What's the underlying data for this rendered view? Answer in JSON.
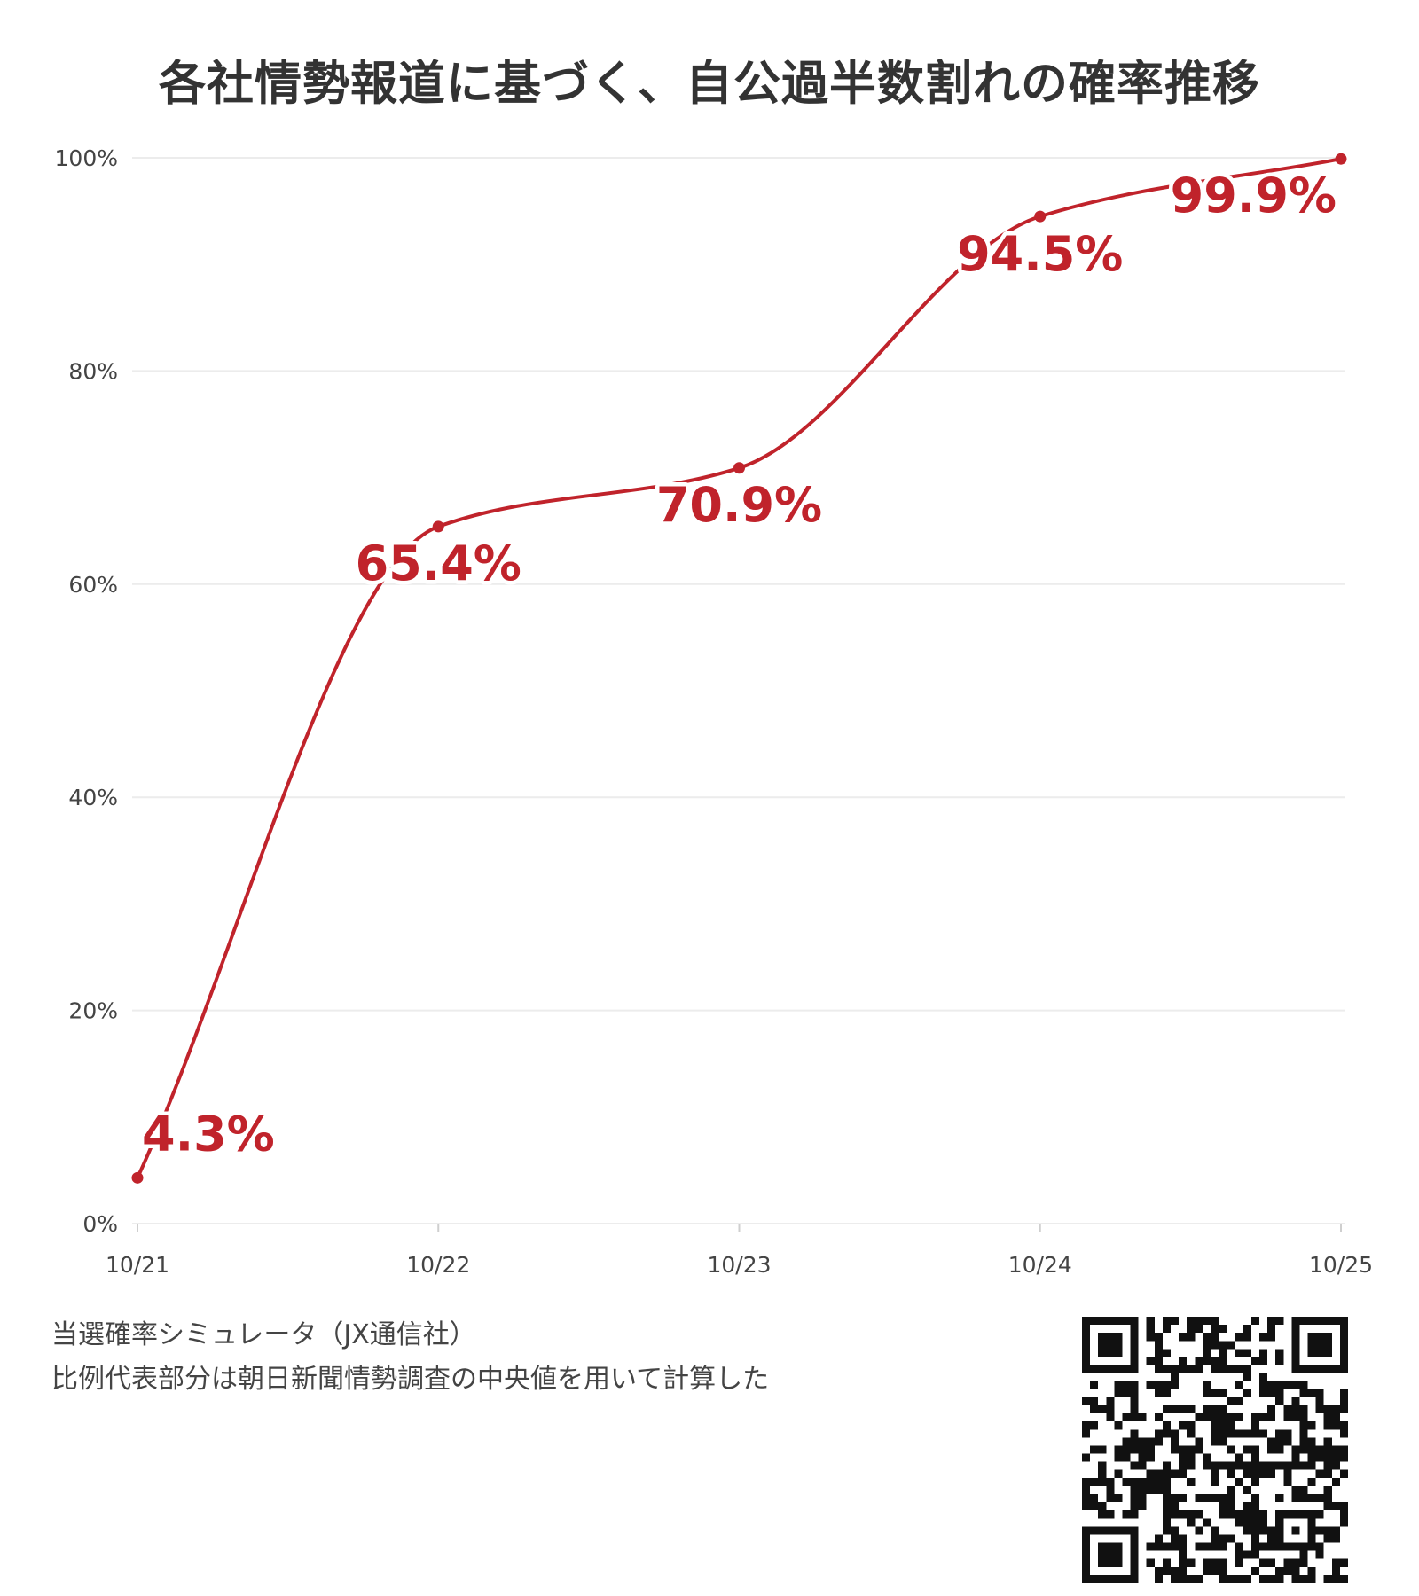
{
  "colors": {
    "line": "#c0232b",
    "grid": "#ececec",
    "axis_text": "#444444",
    "title": "#333333"
  },
  "chart_data": {
    "type": "line",
    "title": "各社情勢報道に基づく、自公過半数割れの確率推移",
    "xlabel": "",
    "ylabel": "",
    "categories": [
      "10/21",
      "10/22",
      "10/23",
      "10/24",
      "10/25"
    ],
    "series": [
      {
        "values": [
          4.3,
          65.4,
          70.9,
          94.5,
          99.9
        ],
        "data_labels": [
          "4.3%",
          "65.4%",
          "70.9%",
          "94.5%",
          ""
        ]
      }
    ],
    "ylim": [
      0,
      100
    ],
    "yticks": [
      0,
      20,
      40,
      60,
      80,
      100
    ],
    "ytick_labels": [
      "0%",
      "20%",
      "40%",
      "60%",
      "80%",
      "100%"
    ],
    "grid": true,
    "legend": "none",
    "annotations": [
      {
        "text": "99.9%",
        "x": "10/25",
        "y": 99.9
      }
    ]
  },
  "footer": {
    "source": "当選確率シミュレータ（JX通信社）",
    "note": "比例代表部分は朝日新聞情勢調査の中央値を用いて計算した"
  },
  "qr_icon": "qr-code-icon"
}
